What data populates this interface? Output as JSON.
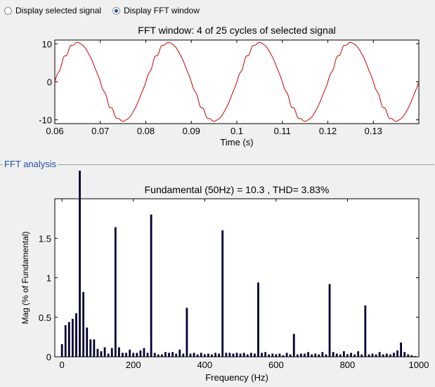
{
  "radios": [
    {
      "label": "Display selected signal",
      "checked": false
    },
    {
      "label": "Display FFT window",
      "checked": true
    }
  ],
  "signal_plot": {
    "title": "FFT window: 4 of 25 cycles of selected signal",
    "xlabel": "Time (s)"
  },
  "fft_panel": {
    "label": "FFT analysis",
    "title": "Fundamental (50Hz) = 10.3 , THD= 3.83%",
    "xlabel": "Frequency (Hz)",
    "ylabel": "Mag (% of Fundamental)"
  },
  "colors": {
    "signal": "#cc0000",
    "bars": "#000033",
    "radio_dot": "#1f4f9a",
    "panel_label": "#1e4fa6"
  },
  "chart_data": [
    {
      "type": "line",
      "title": "FFT window: 4 of 25 cycles of selected signal",
      "xlabel": "Time (s)",
      "ylabel": "",
      "xlim": [
        0.06,
        0.14
      ],
      "ylim": [
        -11,
        11
      ],
      "xticks": [
        0.06,
        0.07,
        0.08,
        0.09,
        0.1,
        0.11,
        0.12,
        0.13
      ],
      "xtick_labels": [
        "0.06",
        "0.07",
        "0.08",
        "0.09",
        "0.1",
        "0.11",
        "0.12",
        "0.13"
      ],
      "yticks": [
        -10,
        0,
        10
      ],
      "ytick_labels": [
        "-10",
        "0",
        "10"
      ],
      "series": [
        {
          "frequency_hz": 50,
          "amplitude": 10.3,
          "peak_times": [
            0.065,
            0.085,
            0.105,
            0.125
          ]
        }
      ]
    },
    {
      "type": "bar",
      "title": "Fundamental (50Hz) = 10.3 , THD= 3.83%",
      "xlabel": "Frequency (Hz)",
      "ylabel": "Mag (% of Fundamental)",
      "xlim": [
        -20,
        1000
      ],
      "ylim": [
        0,
        2
      ],
      "xticks": [
        0,
        200,
        400,
        600,
        800,
        1000
      ],
      "xtick_labels": [
        "0",
        "200",
        "400",
        "600",
        "800",
        "1000"
      ],
      "yticks": [
        0,
        0.5,
        1,
        1.5
      ],
      "ytick_labels": [
        "0",
        "0.5",
        "1",
        "1.5"
      ],
      "bar_spacing_hz": 10,
      "bars": [
        {
          "x": 0,
          "y": 0.16
        },
        {
          "x": 10,
          "y": 0.4
        },
        {
          "x": 20,
          "y": 0.44
        },
        {
          "x": 30,
          "y": 0.48
        },
        {
          "x": 40,
          "y": 0.55
        },
        {
          "x": 50,
          "y": 2.0
        },
        {
          "x": 60,
          "y": 0.82
        },
        {
          "x": 70,
          "y": 0.37
        },
        {
          "x": 80,
          "y": 0.22
        },
        {
          "x": 90,
          "y": 0.22
        },
        {
          "x": 100,
          "y": 0.1
        },
        {
          "x": 110,
          "y": 0.07
        },
        {
          "x": 120,
          "y": 0.12
        },
        {
          "x": 130,
          "y": 0.04
        },
        {
          "x": 140,
          "y": 0.11
        },
        {
          "x": 150,
          "y": 1.64
        },
        {
          "x": 160,
          "y": 0.12
        },
        {
          "x": 170,
          "y": 0.05
        },
        {
          "x": 180,
          "y": 0.05
        },
        {
          "x": 190,
          "y": 0.09
        },
        {
          "x": 200,
          "y": 0.05
        },
        {
          "x": 210,
          "y": 0.05
        },
        {
          "x": 220,
          "y": 0.08
        },
        {
          "x": 230,
          "y": 0.11
        },
        {
          "x": 240,
          "y": 0.05
        },
        {
          "x": 250,
          "y": 1.8
        },
        {
          "x": 260,
          "y": 0.05
        },
        {
          "x": 270,
          "y": 0.03
        },
        {
          "x": 280,
          "y": 0.03
        },
        {
          "x": 290,
          "y": 0.06
        },
        {
          "x": 300,
          "y": 0.05
        },
        {
          "x": 310,
          "y": 0.06
        },
        {
          "x": 320,
          "y": 0.04
        },
        {
          "x": 330,
          "y": 0.09
        },
        {
          "x": 340,
          "y": 0.04
        },
        {
          "x": 350,
          "y": 0.62
        },
        {
          "x": 360,
          "y": 0.04
        },
        {
          "x": 370,
          "y": 0.05
        },
        {
          "x": 380,
          "y": 0.03
        },
        {
          "x": 390,
          "y": 0.05
        },
        {
          "x": 400,
          "y": 0.03
        },
        {
          "x": 410,
          "y": 0.04
        },
        {
          "x": 420,
          "y": 0.03
        },
        {
          "x": 430,
          "y": 0.05
        },
        {
          "x": 440,
          "y": 0.04
        },
        {
          "x": 450,
          "y": 1.6
        },
        {
          "x": 460,
          "y": 0.05
        },
        {
          "x": 470,
          "y": 0.05
        },
        {
          "x": 480,
          "y": 0.04
        },
        {
          "x": 490,
          "y": 0.05
        },
        {
          "x": 500,
          "y": 0.04
        },
        {
          "x": 510,
          "y": 0.05
        },
        {
          "x": 520,
          "y": 0.03
        },
        {
          "x": 530,
          "y": 0.05
        },
        {
          "x": 540,
          "y": 0.04
        },
        {
          "x": 550,
          "y": 0.94
        },
        {
          "x": 560,
          "y": 0.05
        },
        {
          "x": 570,
          "y": 0.06
        },
        {
          "x": 580,
          "y": 0.03
        },
        {
          "x": 590,
          "y": 0.04
        },
        {
          "x": 600,
          "y": 0.03
        },
        {
          "x": 610,
          "y": 0.04
        },
        {
          "x": 620,
          "y": 0.02
        },
        {
          "x": 630,
          "y": 0.05
        },
        {
          "x": 640,
          "y": 0.03
        },
        {
          "x": 650,
          "y": 0.29
        },
        {
          "x": 660,
          "y": 0.03
        },
        {
          "x": 670,
          "y": 0.04
        },
        {
          "x": 680,
          "y": 0.04
        },
        {
          "x": 690,
          "y": 0.06
        },
        {
          "x": 700,
          "y": 0.03
        },
        {
          "x": 710,
          "y": 0.04
        },
        {
          "x": 720,
          "y": 0.03
        },
        {
          "x": 730,
          "y": 0.06
        },
        {
          "x": 740,
          "y": 0.03
        },
        {
          "x": 750,
          "y": 0.92
        },
        {
          "x": 760,
          "y": 0.06
        },
        {
          "x": 770,
          "y": 0.04
        },
        {
          "x": 780,
          "y": 0.03
        },
        {
          "x": 790,
          "y": 0.07
        },
        {
          "x": 800,
          "y": 0.03
        },
        {
          "x": 810,
          "y": 0.05
        },
        {
          "x": 820,
          "y": 0.03
        },
        {
          "x": 830,
          "y": 0.07
        },
        {
          "x": 840,
          "y": 0.03
        },
        {
          "x": 850,
          "y": 0.65
        },
        {
          "x": 860,
          "y": 0.03
        },
        {
          "x": 870,
          "y": 0.04
        },
        {
          "x": 880,
          "y": 0.03
        },
        {
          "x": 890,
          "y": 0.06
        },
        {
          "x": 900,
          "y": 0.03
        },
        {
          "x": 910,
          "y": 0.04
        },
        {
          "x": 920,
          "y": 0.03
        },
        {
          "x": 930,
          "y": 0.05
        },
        {
          "x": 940,
          "y": 0.08
        },
        {
          "x": 950,
          "y": 0.18
        },
        {
          "x": 960,
          "y": 0.06
        },
        {
          "x": 970,
          "y": 0.03
        },
        {
          "x": 980,
          "y": 0.02
        },
        {
          "x": 990,
          "y": 0.01
        }
      ]
    }
  ]
}
